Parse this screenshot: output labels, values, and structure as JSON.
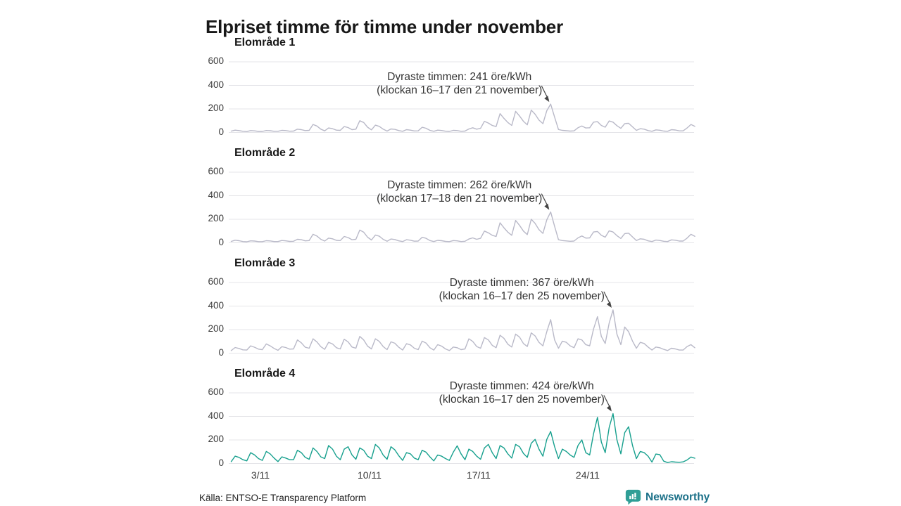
{
  "title": "Elpriset timme för timme under november",
  "source": "Källa: ENTSO-E Transparency Platform",
  "brand": {
    "name": "Newsworthy",
    "icon": "bar-chart-bubble-icon",
    "icon_color": "#2f9e96",
    "text_color": "#1b7088"
  },
  "colors": {
    "muted_line": "#b9b9c8",
    "accent_line": "#17a08e",
    "grid": "#e4e4e8",
    "text": "#333333",
    "title": "#181818"
  },
  "axis": {
    "y_ticks": [
      600,
      400,
      200,
      0
    ],
    "y_unit": "öre/kWh",
    "x_ticks": [
      {
        "label": "3/11",
        "day": 3
      },
      {
        "label": "10/11",
        "day": 10
      },
      {
        "label": "17/11",
        "day": 17
      },
      {
        "label": "24/11",
        "day": 24
      }
    ]
  },
  "chart_data": [
    {
      "type": "line",
      "title": "Elområde 1",
      "unit": "öre/kWh",
      "x_range_days": [
        1,
        30
      ],
      "ylim": [
        0,
        600
      ],
      "samples_per_day": 4,
      "line_color_key": "muted_line",
      "annotation": {
        "line1": "Dyraste timmen: 241 öre/kWh",
        "line2": "(klockan 16–17 den 21 november)",
        "peak_value": 241,
        "peak_day": 21,
        "peak_hours": "16–17"
      },
      "values": [
        12,
        20,
        16,
        10,
        8,
        16,
        14,
        9,
        9,
        17,
        15,
        10,
        10,
        18,
        16,
        11,
        12,
        28,
        24,
        16,
        18,
        68,
        55,
        28,
        14,
        38,
        32,
        20,
        18,
        50,
        42,
        24,
        28,
        100,
        85,
        45,
        22,
        62,
        52,
        28,
        12,
        30,
        26,
        16,
        10,
        24,
        20,
        13,
        14,
        44,
        36,
        18,
        10,
        20,
        17,
        11,
        9,
        18,
        16,
        10,
        12,
        30,
        40,
        28,
        35,
        95,
        80,
        60,
        50,
        160,
        120,
        85,
        60,
        180,
        140,
        95,
        65,
        190,
        155,
        105,
        75,
        185,
        241,
        130,
        25,
        18,
        15,
        12,
        14,
        40,
        55,
        38,
        40,
        88,
        92,
        60,
        45,
        98,
        88,
        58,
        35,
        75,
        78,
        48,
        18,
        32,
        28,
        16,
        10,
        22,
        19,
        12,
        10,
        24,
        21,
        14,
        14,
        38,
        68,
        52
      ]
    },
    {
      "type": "line",
      "title": "Elområde 2",
      "unit": "öre/kWh",
      "x_range_days": [
        1,
        30
      ],
      "ylim": [
        0,
        600
      ],
      "samples_per_day": 4,
      "line_color_key": "muted_line",
      "annotation": {
        "line1": "Dyraste timmen: 262 öre/kWh",
        "line2": "(klockan 17–18 den 21 november)",
        "peak_value": 262,
        "peak_day": 21,
        "peak_hours": "17–18"
      },
      "values": [
        12,
        22,
        18,
        11,
        9,
        17,
        15,
        10,
        10,
        18,
        16,
        11,
        11,
        20,
        17,
        12,
        13,
        30,
        26,
        17,
        19,
        72,
        58,
        30,
        15,
        40,
        34,
        21,
        19,
        54,
        45,
        26,
        30,
        108,
        90,
        48,
        24,
        66,
        56,
        30,
        13,
        32,
        28,
        17,
        11,
        26,
        22,
        14,
        15,
        47,
        38,
        19,
        11,
        21,
        18,
        12,
        10,
        19,
        17,
        11,
        13,
        32,
        42,
        30,
        38,
        100,
        85,
        64,
        54,
        170,
        128,
        90,
        64,
        190,
        148,
        100,
        70,
        200,
        165,
        112,
        80,
        195,
        262,
        140,
        26,
        19,
        16,
        13,
        15,
        42,
        58,
        40,
        42,
        92,
        96,
        64,
        48,
        102,
        92,
        61,
        37,
        78,
        82,
        50,
        19,
        34,
        30,
        17,
        11,
        23,
        20,
        13,
        11,
        25,
        22,
        15,
        15,
        40,
        72,
        55
      ]
    },
    {
      "type": "line",
      "title": "Elområde 3",
      "unit": "öre/kWh",
      "x_range_days": [
        1,
        30
      ],
      "ylim": [
        0,
        600
      ],
      "samples_per_day": 4,
      "line_color_key": "muted_line",
      "annotation": {
        "line1": "Dyraste timmen: 367 öre/kWh",
        "line2": "(klockan 16–17 den 25 november)",
        "peak_value": 367,
        "peak_day": 25,
        "peak_hours": "16–17"
      },
      "values": [
        22,
        48,
        40,
        28,
        26,
        62,
        50,
        34,
        30,
        78,
        62,
        40,
        24,
        55,
        48,
        34,
        36,
        112,
        88,
        50,
        42,
        122,
        95,
        55,
        32,
        92,
        78,
        46,
        36,
        118,
        96,
        52,
        42,
        142,
        112,
        60,
        36,
        122,
        100,
        56,
        30,
        96,
        84,
        50,
        26,
        80,
        70,
        42,
        30,
        102,
        86,
        46,
        26,
        72,
        60,
        36,
        22,
        52,
        46,
        30,
        36,
        122,
        100,
        56,
        42,
        132,
        112,
        66,
        46,
        152,
        126,
        76,
        52,
        162,
        136,
        82,
        56,
        172,
        146,
        92,
        62,
        182,
        285,
        112,
        42,
        102,
        92,
        62,
        46,
        122,
        112,
        72,
        62,
        205,
        310,
        142,
        82,
        255,
        367,
        162,
        72,
        222,
        182,
        102,
        42,
        92,
        82,
        52,
        26,
        52,
        46,
        32,
        22,
        42,
        36,
        26,
        26,
        56,
        72,
        46
      ]
    },
    {
      "type": "line",
      "title": "Elområde 4",
      "unit": "öre/kWh",
      "x_range_days": [
        1,
        30
      ],
      "ylim": [
        0,
        600
      ],
      "samples_per_day": 4,
      "line_color_key": "accent_line",
      "annotation": {
        "line1": "Dyraste timmen: 424 öre/kWh",
        "line2": "(klockan 16–17 den 25 november)",
        "peak_value": 424,
        "peak_day": 25,
        "peak_hours": "16–17"
      },
      "values": [
        16,
        62,
        52,
        32,
        22,
        92,
        72,
        42,
        26,
        102,
        82,
        46,
        16,
        56,
        46,
        32,
        32,
        112,
        92,
        52,
        36,
        132,
        102,
        56,
        42,
        152,
        122,
        62,
        32,
        122,
        142,
        72,
        36,
        132,
        112,
        62,
        42,
        162,
        132,
        72,
        36,
        142,
        116,
        66,
        26,
        92,
        82,
        46,
        32,
        112,
        96,
        56,
        22,
        72,
        62,
        42,
        26,
        96,
        150,
        82,
        32,
        122,
        102,
        62,
        36,
        132,
        162,
        92,
        42,
        152,
        132,
        82,
        46,
        162,
        142,
        86,
        52,
        172,
        205,
        122,
        62,
        205,
        272,
        142,
        42,
        122,
        102,
        72,
        52,
        152,
        200,
        92,
        72,
        252,
        392,
        182,
        92,
        305,
        424,
        202,
        82,
        262,
        312,
        152,
        42,
        102,
        92,
        62,
        12,
        80,
        75,
        20,
        8,
        15,
        12,
        10,
        14,
        30,
        55,
        45
      ]
    }
  ]
}
